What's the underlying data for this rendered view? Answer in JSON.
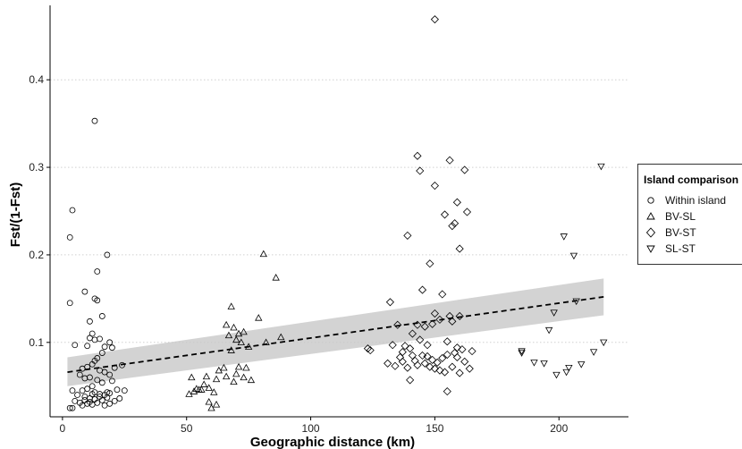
{
  "chart_data": {
    "type": "scatter",
    "xlabel": "Geographic distance (km)",
    "ylabel": "Fst/(1-Fst)",
    "xlim": [
      -5,
      228
    ],
    "ylim": [
      0.015,
      0.485
    ],
    "x_ticks": [
      0,
      50,
      100,
      150,
      200
    ],
    "y_ticks": [
      0.1,
      0.2,
      0.3,
      0.4
    ],
    "grid": "horizontal-dotted",
    "legend": {
      "title": "Island comparison",
      "placement": "right",
      "entries": [
        {
          "label": "Within island",
          "marker": "circle"
        },
        {
          "label": "BV-SL",
          "marker": "triangle-up"
        },
        {
          "label": "BV-ST",
          "marker": "diamond"
        },
        {
          "label": "SL-ST",
          "marker": "triangle-down"
        }
      ]
    },
    "regression": {
      "style": "dashed",
      "x": [
        2,
        218
      ],
      "y": [
        0.066,
        0.152
      ],
      "ci_lower": [
        0.05,
        0.131
      ],
      "ci_upper": [
        0.083,
        0.173
      ]
    },
    "series": [
      {
        "name": "Within island",
        "marker": "circle",
        "points": [
          [
            13,
            0.353
          ],
          [
            4,
            0.251
          ],
          [
            3,
            0.22
          ],
          [
            18,
            0.2
          ],
          [
            14,
            0.181
          ],
          [
            3,
            0.145
          ],
          [
            13,
            0.15
          ],
          [
            14,
            0.148
          ],
          [
            9,
            0.158
          ],
          [
            16,
            0.13
          ],
          [
            11,
            0.124
          ],
          [
            10,
            0.096
          ],
          [
            12,
            0.11
          ],
          [
            11,
            0.105
          ],
          [
            13,
            0.103
          ],
          [
            15,
            0.104
          ],
          [
            5,
            0.097
          ],
          [
            17,
            0.095
          ],
          [
            19,
            0.1
          ],
          [
            20,
            0.094
          ],
          [
            16,
            0.088
          ],
          [
            14,
            0.082
          ],
          [
            13,
            0.079
          ],
          [
            12,
            0.075
          ],
          [
            8,
            0.07
          ],
          [
            10,
            0.072
          ],
          [
            15,
            0.068
          ],
          [
            17,
            0.066
          ],
          [
            21,
            0.071
          ],
          [
            24,
            0.074
          ],
          [
            19,
            0.063
          ],
          [
            11,
            0.06
          ],
          [
            14,
            0.057
          ],
          [
            7,
            0.063
          ],
          [
            9,
            0.059
          ],
          [
            16,
            0.054
          ],
          [
            20,
            0.056
          ],
          [
            12,
            0.05
          ],
          [
            10,
            0.047
          ],
          [
            8,
            0.045
          ],
          [
            13,
            0.043
          ],
          [
            15,
            0.041
          ],
          [
            17,
            0.04
          ],
          [
            19,
            0.042
          ],
          [
            22,
            0.046
          ],
          [
            25,
            0.045
          ],
          [
            4,
            0.045
          ],
          [
            6,
            0.04
          ],
          [
            9,
            0.038
          ],
          [
            11,
            0.036
          ],
          [
            13,
            0.035
          ],
          [
            16,
            0.034
          ],
          [
            18,
            0.037
          ],
          [
            21,
            0.033
          ],
          [
            23,
            0.036
          ],
          [
            5,
            0.033
          ],
          [
            7,
            0.031
          ],
          [
            10,
            0.03
          ],
          [
            12,
            0.029
          ],
          [
            14,
            0.031
          ],
          [
            17,
            0.028
          ],
          [
            19,
            0.03
          ],
          [
            3,
            0.025
          ],
          [
            4,
            0.025
          ],
          [
            8,
            0.028
          ],
          [
            11,
            0.032
          ],
          [
            9,
            0.034
          ],
          [
            12,
            0.041
          ],
          [
            15,
            0.038
          ],
          [
            18,
            0.043
          ]
        ]
      },
      {
        "name": "BV-SL",
        "marker": "triangle-up",
        "points": [
          [
            81,
            0.201
          ],
          [
            86,
            0.174
          ],
          [
            68,
            0.141
          ],
          [
            79,
            0.128
          ],
          [
            66,
            0.12
          ],
          [
            69,
            0.117
          ],
          [
            71,
            0.11
          ],
          [
            73,
            0.112
          ],
          [
            67,
            0.108
          ],
          [
            70,
            0.103
          ],
          [
            72,
            0.1
          ],
          [
            88,
            0.106
          ],
          [
            75,
            0.095
          ],
          [
            82,
            0.1
          ],
          [
            68,
            0.091
          ],
          [
            74,
            0.071
          ],
          [
            71,
            0.072
          ],
          [
            65,
            0.071
          ],
          [
            63,
            0.068
          ],
          [
            52,
            0.06
          ],
          [
            58,
            0.061
          ],
          [
            62,
            0.058
          ],
          [
            66,
            0.061
          ],
          [
            70,
            0.064
          ],
          [
            73,
            0.06
          ],
          [
            76,
            0.057
          ],
          [
            69,
            0.055
          ],
          [
            57,
            0.052
          ],
          [
            59,
            0.048
          ],
          [
            55,
            0.046
          ],
          [
            53,
            0.044
          ],
          [
            51,
            0.041
          ],
          [
            56,
            0.046
          ],
          [
            61,
            0.043
          ],
          [
            60,
            0.025
          ],
          [
            59,
            0.032
          ],
          [
            62,
            0.029
          ],
          [
            54,
            0.047
          ]
        ]
      },
      {
        "name": "BV-ST",
        "marker": "diamond",
        "points": [
          [
            150,
            0.469
          ],
          [
            143,
            0.313
          ],
          [
            156,
            0.308
          ],
          [
            144,
            0.296
          ],
          [
            162,
            0.297
          ],
          [
            150,
            0.279
          ],
          [
            154,
            0.246
          ],
          [
            159,
            0.26
          ],
          [
            163,
            0.249
          ],
          [
            157,
            0.233
          ],
          [
            158,
            0.236
          ],
          [
            139,
            0.222
          ],
          [
            160,
            0.207
          ],
          [
            148,
            0.19
          ],
          [
            145,
            0.16
          ],
          [
            153,
            0.155
          ],
          [
            132,
            0.146
          ],
          [
            156,
            0.13
          ],
          [
            160,
            0.13
          ],
          [
            150,
            0.133
          ],
          [
            152,
            0.126
          ],
          [
            157,
            0.124
          ],
          [
            135,
            0.12
          ],
          [
            143,
            0.12
          ],
          [
            146,
            0.118
          ],
          [
            149,
            0.121
          ],
          [
            141,
            0.11
          ],
          [
            144,
            0.103
          ],
          [
            138,
            0.096
          ],
          [
            140,
            0.093
          ],
          [
            137,
            0.089
          ],
          [
            147,
            0.097
          ],
          [
            155,
            0.101
          ],
          [
            159,
            0.094
          ],
          [
            161,
            0.092
          ],
          [
            165,
            0.09
          ],
          [
            123,
            0.093
          ],
          [
            124,
            0.091
          ],
          [
            133,
            0.097
          ],
          [
            136,
            0.083
          ],
          [
            142,
            0.079
          ],
          [
            145,
            0.085
          ],
          [
            149,
            0.08
          ],
          [
            151,
            0.077
          ],
          [
            153,
            0.082
          ],
          [
            155,
            0.086
          ],
          [
            158,
            0.088
          ],
          [
            162,
            0.078
          ],
          [
            131,
            0.076
          ],
          [
            134,
            0.073
          ],
          [
            139,
            0.071
          ],
          [
            143,
            0.074
          ],
          [
            146,
            0.076
          ],
          [
            148,
            0.072
          ],
          [
            150,
            0.07
          ],
          [
            152,
            0.068
          ],
          [
            154,
            0.066
          ],
          [
            157,
            0.072
          ],
          [
            160,
            0.065
          ],
          [
            164,
            0.07
          ],
          [
            140,
            0.057
          ],
          [
            155,
            0.044
          ],
          [
            137,
            0.078
          ],
          [
            141,
            0.085
          ],
          [
            147,
            0.084
          ],
          [
            159,
            0.083
          ]
        ]
      },
      {
        "name": "SL-ST",
        "marker": "triangle-down",
        "points": [
          [
            217,
            0.301
          ],
          [
            202,
            0.221
          ],
          [
            206,
            0.199
          ],
          [
            207,
            0.147
          ],
          [
            198,
            0.134
          ],
          [
            196,
            0.114
          ],
          [
            218,
            0.1
          ],
          [
            214,
            0.089
          ],
          [
            185,
            0.088
          ],
          [
            190,
            0.077
          ],
          [
            194,
            0.076
          ],
          [
            209,
            0.075
          ],
          [
            204,
            0.071
          ],
          [
            199,
            0.063
          ],
          [
            203,
            0.066
          ],
          [
            185,
            0.09
          ]
        ]
      }
    ]
  }
}
